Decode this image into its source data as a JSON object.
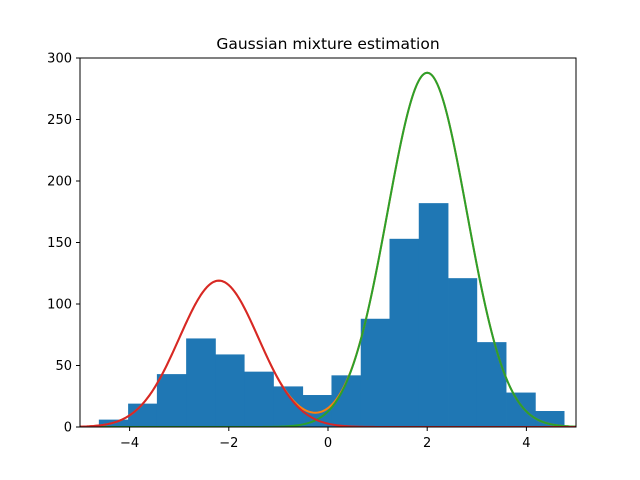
{
  "chart_data": {
    "type": "bar",
    "title": "Gaussian mixture estimation",
    "xlabel": "",
    "ylabel": "",
    "xlim": [
      -5,
      5
    ],
    "ylim": [
      0,
      300
    ],
    "xticks": [
      -4,
      -2,
      0,
      2,
      4
    ],
    "xtick_labels": [
      "−4",
      "−2",
      "0",
      "2",
      "4"
    ],
    "yticks": [
      0,
      50,
      100,
      150,
      200,
      250,
      300
    ],
    "ytick_labels": [
      "0",
      "50",
      "100",
      "150",
      "200",
      "250",
      "300"
    ],
    "grid": false,
    "histogram": {
      "color": "#1f77b4",
      "bins": [
        {
          "x0": -4.62,
          "x1": -4.03,
          "value": 6
        },
        {
          "x0": -4.03,
          "x1": -3.45,
          "value": 19
        },
        {
          "x0": -3.45,
          "x1": -2.86,
          "value": 43
        },
        {
          "x0": -2.86,
          "x1": -2.27,
          "value": 72
        },
        {
          "x0": -2.27,
          "x1": -1.69,
          "value": 59
        },
        {
          "x0": -1.69,
          "x1": -1.1,
          "value": 45
        },
        {
          "x0": -1.1,
          "x1": -0.51,
          "value": 33
        },
        {
          "x0": -0.51,
          "x1": 0.07,
          "value": 26
        },
        {
          "x0": 0.07,
          "x1": 0.66,
          "value": 42
        },
        {
          "x0": 0.66,
          "x1": 1.24,
          "value": 88
        },
        {
          "x0": 1.24,
          "x1": 1.83,
          "value": 153
        },
        {
          "x0": 1.83,
          "x1": 2.42,
          "value": 182
        },
        {
          "x0": 2.42,
          "x1": 3.0,
          "value": 121
        },
        {
          "x0": 3.0,
          "x1": 3.59,
          "value": 69
        },
        {
          "x0": 3.59,
          "x1": 4.18,
          "value": 28
        },
        {
          "x0": 4.18,
          "x1": 4.76,
          "value": 13
        }
      ]
    },
    "curves": [
      {
        "color": "#ff7f0e",
        "kind": "mixture",
        "components": [
          0,
          1
        ]
      },
      {
        "color": "#2ca02c",
        "kind": "component",
        "components": [
          1
        ]
      },
      {
        "color": "#d62728",
        "kind": "component",
        "components": [
          0
        ]
      }
    ],
    "components": [
      {
        "amplitude": 119,
        "mean": -2.2,
        "sd": 0.8
      },
      {
        "amplitude": 288,
        "mean": 2.0,
        "sd": 0.8
      }
    ]
  }
}
